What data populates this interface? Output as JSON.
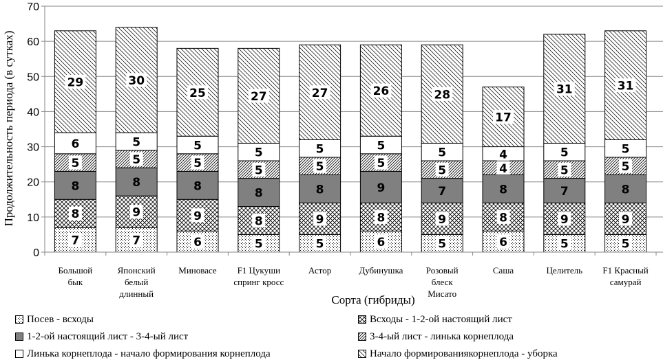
{
  "chart_data": {
    "type": "bar",
    "stacked": true,
    "title": "",
    "xlabel": "Сорта (гибриды)",
    "ylabel": "Продолжительность периода (в сутках)",
    "ylim": [
      0,
      70
    ],
    "yticks": [
      0,
      10,
      20,
      30,
      40,
      50,
      60,
      70
    ],
    "grid": true,
    "legend_position": "bottom",
    "categories": [
      [
        "Большой",
        "бык"
      ],
      [
        "Японский",
        "белый",
        "длинный"
      ],
      [
        "Миновасе"
      ],
      [
        "F1 Цукуши",
        "спринг кросс"
      ],
      [
        "Астор"
      ],
      [
        "Дубинушка"
      ],
      [
        "Розовый",
        "блеск",
        "Мисато"
      ],
      [
        "Саша"
      ],
      [
        "Целитель"
      ],
      [
        "F1 Красный",
        "самурай"
      ]
    ],
    "series": [
      {
        "name": "Посев - всходы",
        "pattern": "dots",
        "values": [
          7,
          7,
          6,
          5,
          5,
          6,
          5,
          6,
          5,
          5
        ]
      },
      {
        "name": "Всходы - 1-2-ой настоящий лист",
        "pattern": "crosshatch",
        "values": [
          8,
          9,
          9,
          8,
          9,
          8,
          9,
          8,
          9,
          9
        ]
      },
      {
        "name": "1-2-ой настоящий лист - 3-4-ый лист",
        "pattern": "solid-gray",
        "values": [
          8,
          8,
          8,
          8,
          8,
          9,
          7,
          8,
          7,
          8
        ]
      },
      {
        "name": "3-4-ый лист - линька корнеплода",
        "pattern": "diagonal-fine",
        "values": [
          5,
          5,
          5,
          5,
          5,
          5,
          5,
          4,
          5,
          5
        ]
      },
      {
        "name": "Линька корнеплода - начало формирования корнеплода",
        "pattern": "white",
        "values": [
          6,
          5,
          5,
          5,
          5,
          5,
          5,
          4,
          5,
          5
        ]
      },
      {
        "name": "Начало формированиякорнеплода - уборка",
        "pattern": "diagonal-wide",
        "values": [
          29,
          30,
          25,
          27,
          27,
          26,
          28,
          17,
          31,
          31
        ]
      }
    ]
  },
  "colors": {
    "dark_fill": "#808080",
    "gridline": "#868686",
    "axis": "#868686",
    "border": "#000000",
    "background": "#ffffff"
  }
}
